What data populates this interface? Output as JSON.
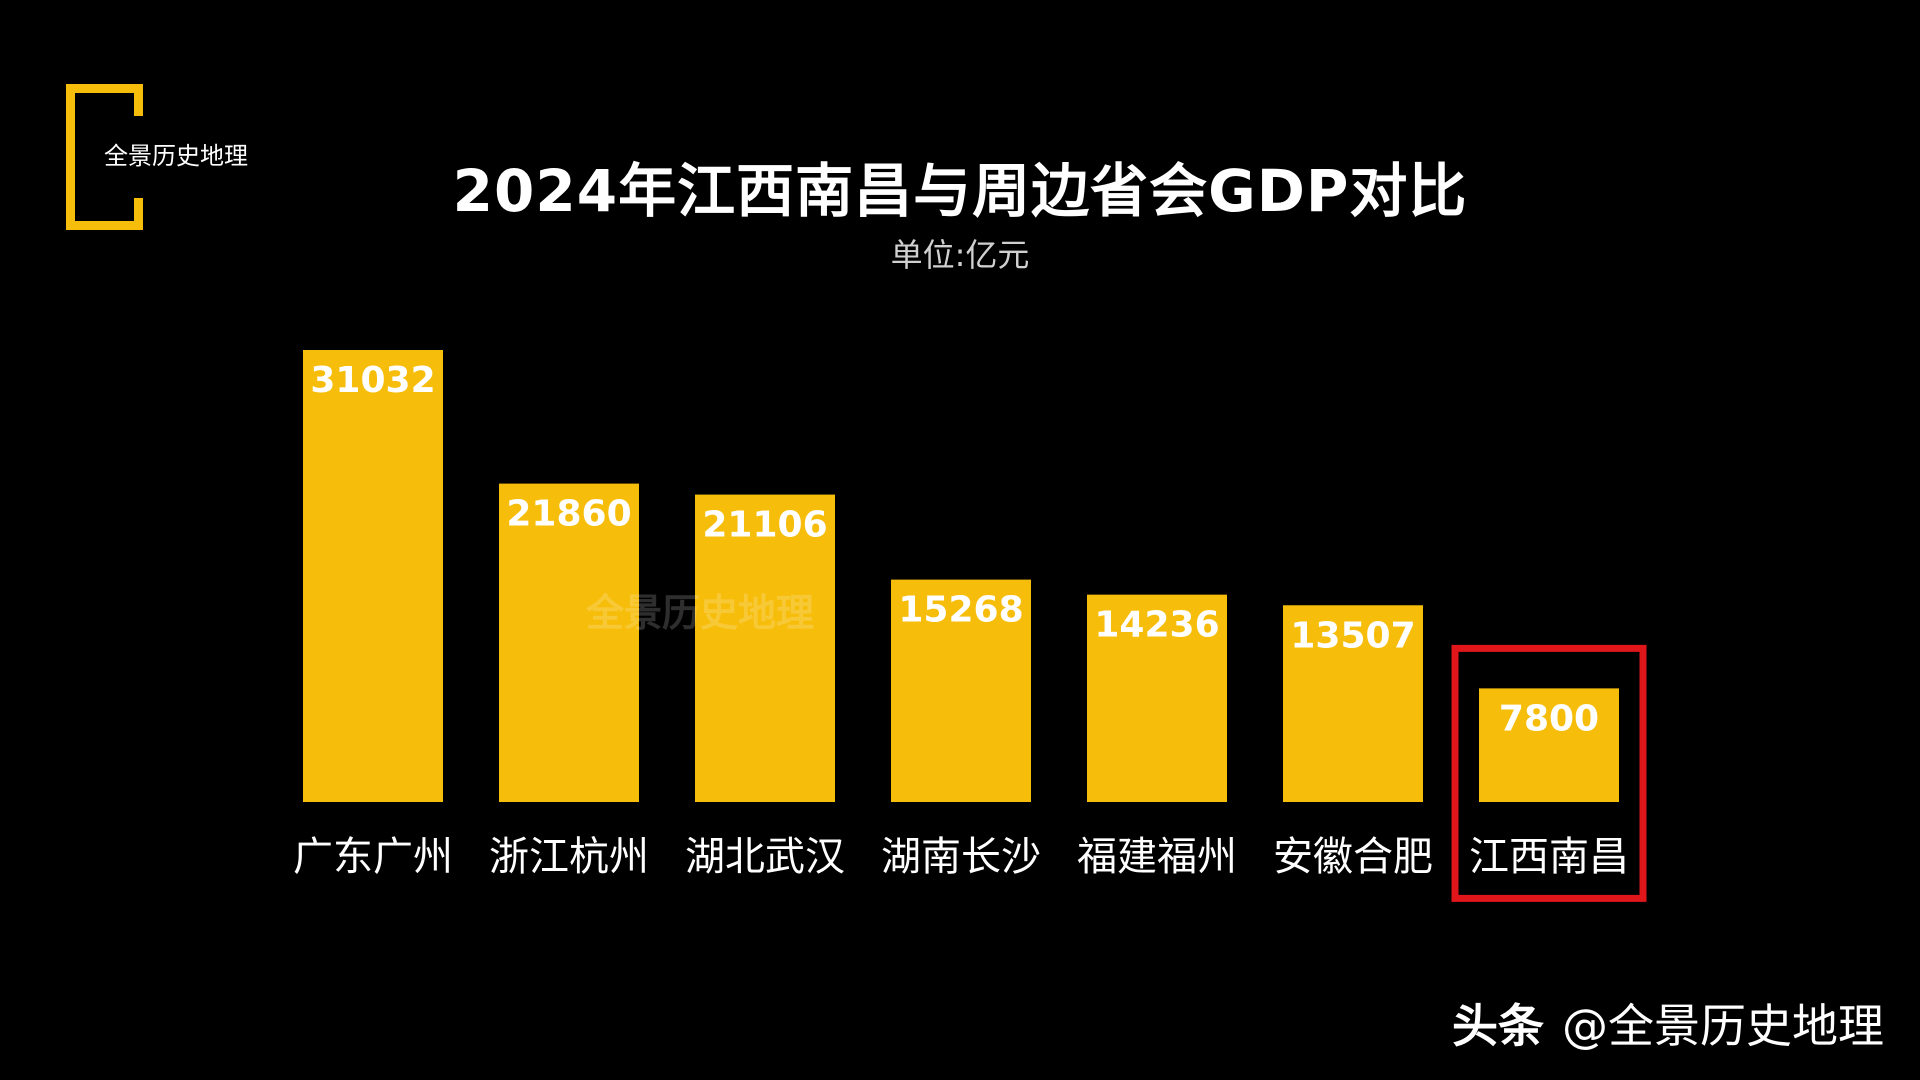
{
  "logo": {
    "text": "全景历史地理"
  },
  "watermark": "全景历史地理",
  "footer": {
    "brand": "头条",
    "handle": "@全景历史地理"
  },
  "colors": {
    "background": "#000000",
    "bar": "#f7bd0b",
    "highlight": "#e0161b",
    "text": "#ffffff"
  },
  "chart_data": {
    "type": "bar",
    "title": "2024年江西南昌与周边省会GDP对比",
    "subtitle": "单位:亿元",
    "xlabel": "",
    "ylabel": "",
    "grid": false,
    "ylim": [
      0,
      31032
    ],
    "categories": [
      "广东广州",
      "浙江杭州",
      "湖北武汉",
      "湖南长沙",
      "福建福州",
      "安徽合肥",
      "江西南昌"
    ],
    "values": [
      31032,
      21860,
      21106,
      15268,
      14236,
      13507,
      7800
    ],
    "highlighted_category": "江西南昌"
  }
}
